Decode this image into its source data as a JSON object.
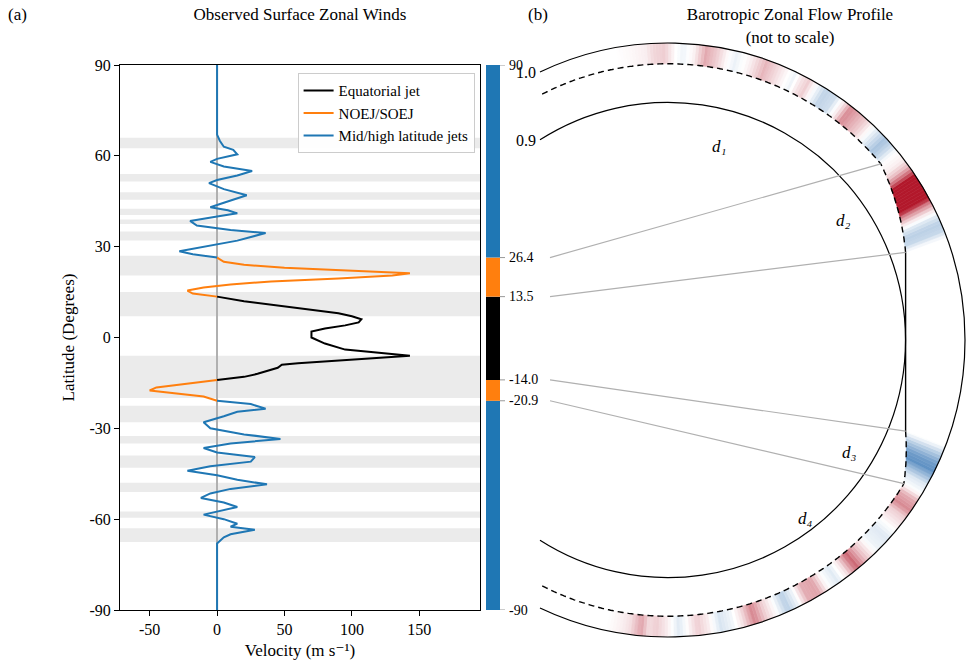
{
  "chart_data": {
    "type": "line",
    "panel": "(a)",
    "title": "Observed Surface Zonal Winds",
    "x_label": "Velocity (m s⁻¹)",
    "y_label": "Latitude (Degrees)",
    "xlim": [
      -72,
      195
    ],
    "xticks": [
      -50,
      0,
      50,
      100,
      150
    ],
    "ylim": [
      -90,
      90
    ],
    "yticks": [
      -90,
      -60,
      -30,
      0,
      30,
      60,
      90
    ],
    "grid": false,
    "legend": "upper right",
    "shaded_latitudes": [
      [
        62.5,
        66
      ],
      [
        51.5,
        54
      ],
      [
        45.5,
        48
      ],
      [
        40.5,
        42.5
      ],
      [
        37.5,
        39
      ],
      [
        32,
        35
      ],
      [
        20.5,
        27
      ],
      [
        7,
        15
      ],
      [
        -20,
        -6
      ],
      [
        -28,
        -22.5
      ],
      [
        -35,
        -32.5
      ],
      [
        -43,
        -39
      ],
      [
        -51,
        -48
      ],
      [
        -59.5,
        -57.5
      ],
      [
        -67.5,
        -63
      ]
    ],
    "series": [
      {
        "name": "Equatorial jet",
        "color": "#000000",
        "latitude": [
          -14.0,
          -13,
          -12,
          -10,
          -9,
          -8.5,
          -7,
          -6,
          -5,
          -4,
          -2,
          0,
          2,
          3,
          4,
          5,
          6,
          7,
          8,
          10,
          11,
          12,
          13.5
        ],
        "velocity": [
          0,
          20,
          30,
          45,
          48,
          60,
          110,
          143,
          120,
          95,
          80,
          70,
          70,
          80,
          95,
          105,
          107,
          100,
          90,
          55,
          40,
          20,
          0
        ]
      },
      {
        "name": "NOEJ/SOEJ",
        "color": "#ff7f0e",
        "latitude": [
          -20.9,
          -19.5,
          -18.5,
          -17.5,
          -16.5,
          -15,
          -14.0,
          null,
          13.5,
          14.5,
          15.5,
          16.5,
          17.5,
          18.5,
          19.5,
          20.5,
          21.2,
          22,
          23,
          24,
          25,
          26.4
        ],
        "velocity": [
          0,
          -10,
          -30,
          -50,
          -45,
          -20,
          0,
          null,
          0,
          -18,
          -22,
          -10,
          10,
          40,
          90,
          130,
          143,
          100,
          50,
          20,
          5,
          0
        ]
      },
      {
        "name": "Mid/high latitude jets",
        "color": "#1f77b4",
        "latitude": [
          -90,
          -68,
          -66,
          -65,
          -63.5,
          -62.5,
          -61.5,
          -60,
          -58.5,
          -57.5,
          -56,
          -54.5,
          -53,
          -51.5,
          -50,
          -48.5,
          -47,
          -45.5,
          -44,
          -42.5,
          -41,
          -39.5,
          -38,
          -36.5,
          -35,
          -33.5,
          -32,
          -30,
          -28,
          -26,
          -24.5,
          -23.5,
          -22,
          -20.9,
          null,
          26.4,
          27.5,
          28.5,
          30,
          32,
          34.5,
          35.5,
          37,
          38.5,
          40,
          41,
          42,
          43,
          44.5,
          47,
          49,
          51,
          52,
          53.5,
          55,
          56.5,
          58,
          59,
          60.5,
          62,
          63,
          65,
          67,
          90
        ],
        "velocity": [
          0,
          0,
          5,
          10,
          28,
          10,
          15,
          5,
          -10,
          0,
          15,
          5,
          -12,
          -5,
          10,
          37,
          15,
          0,
          -22,
          -5,
          25,
          28,
          0,
          -10,
          10,
          47,
          20,
          -5,
          -10,
          5,
          15,
          36,
          25,
          0,
          null,
          0,
          -18,
          -28,
          -10,
          15,
          36,
          10,
          -15,
          -20,
          0,
          15,
          8,
          -5,
          5,
          22,
          5,
          -6,
          0,
          15,
          26,
          5,
          -5,
          0,
          15,
          12,
          5,
          2,
          0,
          0
        ]
      }
    ],
    "region_bar": {
      "segments": [
        {
          "from": -90,
          "to": -20.9,
          "color": "#1f77b4"
        },
        {
          "from": -20.9,
          "to": -14.0,
          "color": "#ff7f0e"
        },
        {
          "from": -14.0,
          "to": 13.5,
          "color": "#000000"
        },
        {
          "from": 13.5,
          "to": 26.4,
          "color": "#ff7f0e"
        },
        {
          "from": 26.4,
          "to": 90,
          "color": "#1f77b4"
        }
      ],
      "ticks": [
        90,
        26.4,
        13.5,
        {
          "value": -14.0,
          "label": "-14.0"
        },
        -20.9,
        -90
      ]
    }
  },
  "diagram": {
    "panel": "(b)",
    "title": "Barotropic Zonal Flow Profile",
    "subtitle": "(not to scale)",
    "radii": [
      {
        "value": 1.0,
        "label": "1.0"
      },
      {
        "value": 0.9,
        "label": "0.9"
      }
    ],
    "depth_labels": [
      "d₁",
      "d₂",
      "d₃",
      "d₄"
    ]
  }
}
